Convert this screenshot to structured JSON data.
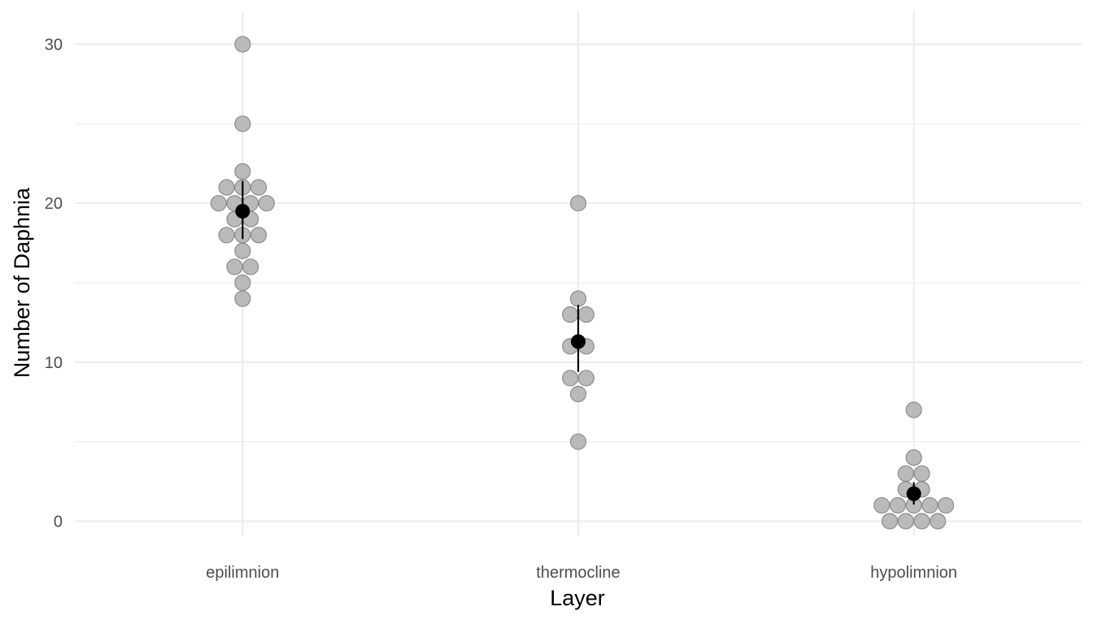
{
  "chart_data": {
    "type": "scatter",
    "subtype": "dotplot-with-mean-and-error",
    "title": "",
    "xlabel": "Layer",
    "ylabel": "Number of Daphnia",
    "categories": [
      "epilimnion",
      "thermocline",
      "hypolimnion"
    ],
    "ylim": [
      -2,
      32
    ],
    "yticks": [
      0,
      10,
      20,
      30
    ],
    "grid": true,
    "legend": "none",
    "colors": {
      "point_fill": "#b3b3b3",
      "point_stroke": "#8c8c8c",
      "mean": "#000000",
      "grid": "#ebebeb",
      "tick_text": "#4d4d4d"
    },
    "series": [
      {
        "category": "epilimnion",
        "values": [
          30,
          25,
          22,
          21,
          21,
          21,
          20,
          20,
          20,
          20,
          19,
          19,
          18,
          18,
          18,
          17,
          16,
          16,
          15,
          14
        ],
        "mean": 19.5,
        "error": [
          17.75,
          21.4
        ]
      },
      {
        "category": "thermocline",
        "values": [
          20,
          14,
          13,
          13,
          11,
          11,
          9,
          9,
          8,
          5
        ],
        "mean": 11.3,
        "error": [
          9.4,
          13.6
        ]
      },
      {
        "category": "hypolimnion",
        "values": [
          7,
          4,
          3,
          3,
          2,
          2,
          1,
          1,
          1,
          1,
          1,
          0,
          0,
          0,
          0
        ],
        "mean": 1.73,
        "error": [
          1.05,
          2.45
        ]
      }
    ]
  }
}
